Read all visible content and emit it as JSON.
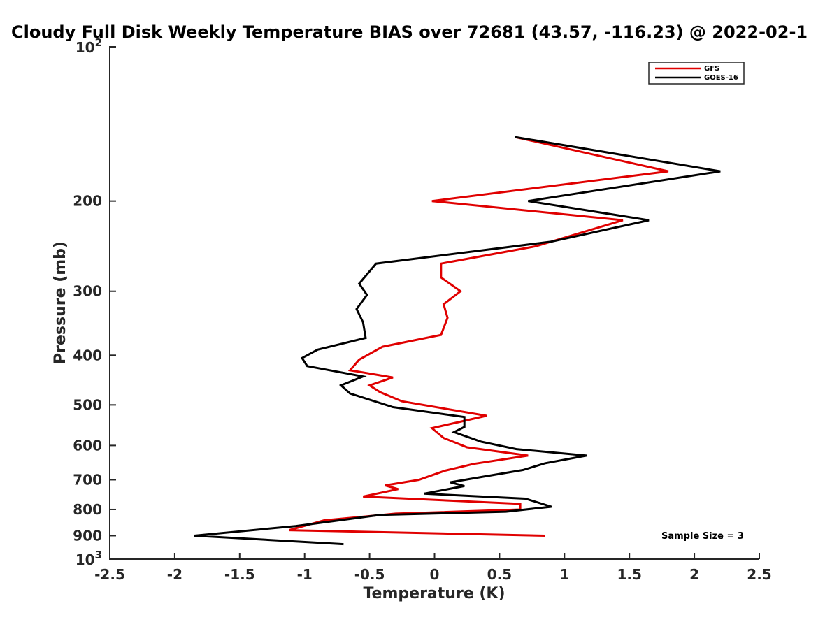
{
  "chart_data": {
    "type": "line",
    "title": "Cloudy Full Disk Weekly Temperature BIAS over 72681 (43.57, -116.23) @ 2022-02-1",
    "xlabel": "Temperature (K)",
    "ylabel": "Pressure (mb)",
    "xlim": [
      -2.5,
      2.5
    ],
    "ylim": [
      100,
      1000
    ],
    "yscale": "log",
    "y_reversed": true,
    "xticks": [
      "-2.5",
      "-2",
      "-1.5",
      "-1",
      "-0.5",
      "0",
      "0.5",
      "1",
      "1.5",
      "2",
      "2.5"
    ],
    "xtick_values": [
      -2.5,
      -2,
      -1.5,
      -1,
      -0.5,
      0,
      0.5,
      1,
      1.5,
      2,
      2.5
    ],
    "yticks_plain": [
      {
        "value": 200,
        "label": "200"
      },
      {
        "value": 300,
        "label": "300"
      },
      {
        "value": 400,
        "label": "400"
      },
      {
        "value": 500,
        "label": "500"
      },
      {
        "value": 600,
        "label": "600"
      },
      {
        "value": 700,
        "label": "700"
      },
      {
        "value": 800,
        "label": "800"
      },
      {
        "value": 900,
        "label": "900"
      }
    ],
    "yticks_power": [
      {
        "value": 100,
        "base": "10",
        "exp": "2"
      },
      {
        "value": 1000,
        "base": "10",
        "exp": "3"
      }
    ],
    "legend_position": "top-right",
    "grid": false,
    "annotation": "Sample Size = 3",
    "series": [
      {
        "name": "GFS",
        "color": "#e00000",
        "points": [
          [
            0.62,
            150
          ],
          [
            1.8,
            175
          ],
          [
            -0.02,
            200
          ],
          [
            1.45,
            218
          ],
          [
            0.78,
            245
          ],
          [
            0.05,
            265
          ],
          [
            0.05,
            282
          ],
          [
            0.2,
            300
          ],
          [
            0.07,
            318
          ],
          [
            0.1,
            338
          ],
          [
            0.05,
            365
          ],
          [
            -0.4,
            385
          ],
          [
            -0.58,
            408
          ],
          [
            -0.65,
            428
          ],
          [
            -0.32,
            442
          ],
          [
            -0.5,
            458
          ],
          [
            -0.42,
            472
          ],
          [
            -0.25,
            492
          ],
          [
            0.4,
            525
          ],
          [
            -0.02,
            555
          ],
          [
            0.07,
            580
          ],
          [
            0.25,
            605
          ],
          [
            0.72,
            628
          ],
          [
            0.3,
            652
          ],
          [
            0.08,
            672
          ],
          [
            -0.12,
            700
          ],
          [
            -0.38,
            718
          ],
          [
            -0.28,
            730
          ],
          [
            -0.55,
            755
          ],
          [
            0.66,
            780
          ],
          [
            0.66,
            800
          ],
          [
            -0.3,
            815
          ],
          [
            -0.85,
            840
          ],
          [
            -1.12,
            878
          ],
          [
            0.85,
            900
          ]
        ]
      },
      {
        "name": "GOES-16",
        "color": "#000000",
        "points": [
          [
            0.62,
            150
          ],
          [
            2.2,
            175
          ],
          [
            0.72,
            200
          ],
          [
            1.65,
            218
          ],
          [
            0.9,
            240
          ],
          [
            -0.45,
            265
          ],
          [
            -0.58,
            290
          ],
          [
            -0.52,
            305
          ],
          [
            -0.6,
            325
          ],
          [
            -0.55,
            345
          ],
          [
            -0.53,
            370
          ],
          [
            -0.9,
            390
          ],
          [
            -1.02,
            405
          ],
          [
            -0.98,
            420
          ],
          [
            -0.55,
            440
          ],
          [
            -0.72,
            458
          ],
          [
            -0.65,
            475
          ],
          [
            -0.32,
            505
          ],
          [
            0.23,
            528
          ],
          [
            0.23,
            552
          ],
          [
            0.15,
            565
          ],
          [
            0.36,
            590
          ],
          [
            0.63,
            610
          ],
          [
            1.17,
            628
          ],
          [
            0.85,
            650
          ],
          [
            0.68,
            670
          ],
          [
            0.38,
            690
          ],
          [
            0.12,
            708
          ],
          [
            0.23,
            720
          ],
          [
            -0.08,
            745
          ],
          [
            0.7,
            762
          ],
          [
            0.9,
            790
          ],
          [
            0.55,
            808
          ],
          [
            -0.42,
            820
          ],
          [
            -1.07,
            862
          ],
          [
            -1.85,
            900
          ],
          [
            -0.7,
            935
          ]
        ]
      }
    ]
  }
}
